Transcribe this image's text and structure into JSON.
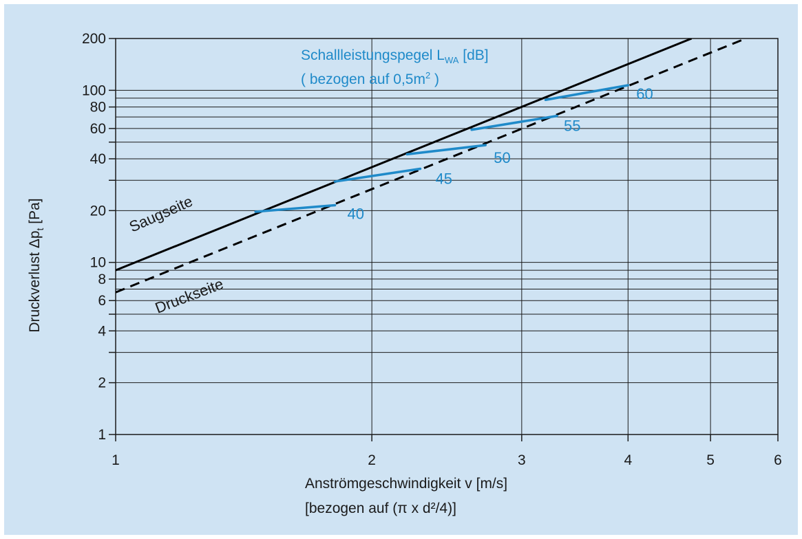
{
  "chart_data": {
    "type": "line",
    "x_scale": "log",
    "y_scale": "log",
    "xlim": [
      1,
      6
    ],
    "ylim": [
      1,
      200
    ],
    "grid": true,
    "xlabel": "Anströmgeschwindigkeit v  [m/s]",
    "xlabel_sub": "[bezogen auf (π x d²/4)]",
    "ylabel": "Druckverlust Δpt  [Pa]",
    "x_ticks": [
      "1",
      "2",
      "3",
      "4",
      "5",
      "6"
    ],
    "y_ticks": [
      "1",
      "2",
      "4",
      "6",
      "8",
      "10",
      "20",
      "40",
      "60",
      "80",
      "100",
      "200"
    ],
    "annotation_line1": "Schallleistungspegel LWA [dB]",
    "annotation_line2": "( bezogen auf 0,5m² )",
    "series": [
      {
        "name": "Saugseite",
        "style": "solid",
        "color": "#000000",
        "x": [
          1.0,
          4.75
        ],
        "y": [
          9.0,
          200
        ]
      },
      {
        "name": "Druckseite",
        "style": "dashed",
        "color": "#000000",
        "x": [
          1.0,
          5.5
        ],
        "y": [
          6.7,
          200
        ]
      }
    ],
    "sound_levels": [
      {
        "label": "40",
        "x": [
          1.46,
          1.81
        ],
        "y": [
          19.7,
          21.5
        ]
      },
      {
        "label": "45",
        "x": [
          1.81,
          2.28
        ],
        "y": [
          29.5,
          35.0
        ]
      },
      {
        "label": "50",
        "x": [
          2.2,
          2.72
        ],
        "y": [
          42.5,
          48.0
        ]
      },
      {
        "label": "55",
        "x": [
          2.62,
          3.3
        ],
        "y": [
          59.0,
          71.0
        ]
      },
      {
        "label": "60",
        "x": [
          3.2,
          4.0
        ],
        "y": [
          88.0,
          107.0
        ]
      }
    ],
    "colors": {
      "background": "#cfe3f3",
      "sound_level": "#1f8ac9",
      "curves": "#000000"
    }
  }
}
